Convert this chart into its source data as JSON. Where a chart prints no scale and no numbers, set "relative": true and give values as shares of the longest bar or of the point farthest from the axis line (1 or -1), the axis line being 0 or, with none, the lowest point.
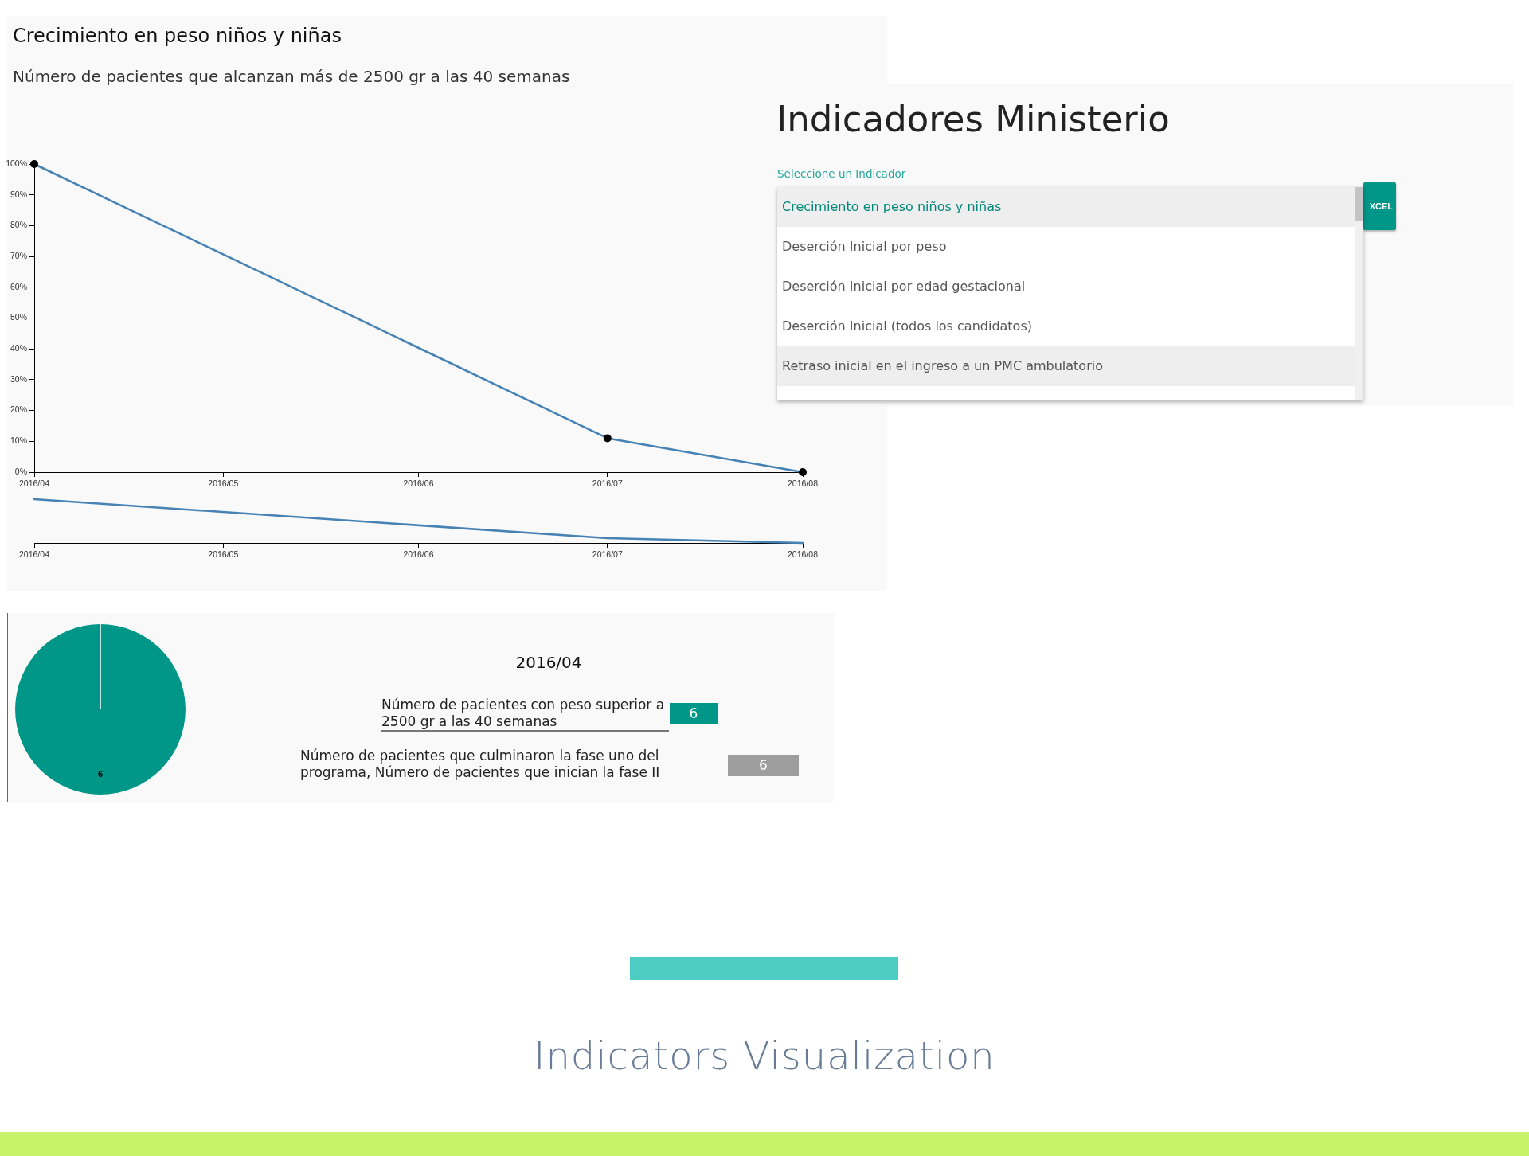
{
  "chart_data": [
    {
      "type": "line",
      "title": "Crecimiento en peso niños y niñas",
      "subtitle": "Número de pacientes que alcanzan más de 2500 gr a las 40 semanas",
      "x": [
        "2016-04",
        "2016-07",
        "2016-08"
      ],
      "values": [
        100,
        11,
        0
      ],
      "color": "#4682b4",
      "colors": [
        "#000000",
        "#000000",
        "#000000"
      ],
      "marker": "circle",
      "xlim": [
        "2016-04",
        "2016-08"
      ],
      "xticks": [
        {
          "value": "2016-04",
          "label": "2016/04"
        },
        {
          "value": "2016-05",
          "label": "2016/05"
        },
        {
          "value": "2016-06",
          "label": "2016/06"
        },
        {
          "value": "2016-07",
          "label": "2016/07"
        },
        {
          "value": "2016-08",
          "label": "2016/08"
        }
      ],
      "ylim": [
        0,
        100
      ],
      "yticks": [
        {
          "value": 0,
          "label": "0%"
        },
        {
          "value": 10,
          "label": "10%"
        },
        {
          "value": 20,
          "label": "20%"
        },
        {
          "value": 30,
          "label": "30%"
        },
        {
          "value": 40,
          "label": "40%"
        },
        {
          "value": 50,
          "label": "50%"
        },
        {
          "value": 60,
          "label": "60%"
        },
        {
          "value": 70,
          "label": "70%"
        },
        {
          "value": 80,
          "label": "80%"
        },
        {
          "value": 90,
          "label": "90%"
        },
        {
          "value": 100,
          "label": "100%"
        }
      ]
    },
    {
      "type": "other",
      "title": "Indicadores Ministerio",
      "subtitle": "Seleccione un Indicador",
      "categories": [
        "Crecimiento en peso niños y niñas",
        "Deserción Inicial por peso",
        "Deserción Inicial por edad gestacional",
        "Deserción Inicial (todos los candidatos)",
        "Retraso inicial en el ingreso a un PMC ambulatorio"
      ],
      "annotations": [
        "XCEL"
      ]
    },
    {
      "type": "line",
      "x": [
        "2016-04",
        "2016-07",
        "2016-08"
      ],
      "values": [
        1,
        0.11,
        0
      ],
      "color": "#4682b4",
      "relative": true,
      "xlim": [
        "2016-04",
        "2016-08"
      ],
      "xticks": [
        {
          "value": "2016-04",
          "label": "2016/04"
        },
        {
          "value": "2016-05",
          "label": "2016/05"
        },
        {
          "value": "2016-06",
          "label": "2016/06"
        },
        {
          "value": "2016-07",
          "label": "2016/07"
        },
        {
          "value": "2016-08",
          "label": "2016/08"
        }
      ],
      "tick_labels": "x"
    },
    {
      "type": "pie",
      "categories": [
        null
      ],
      "values": [
        6
      ],
      "colors": [
        "#009688"
      ],
      "data_labels": true
    },
    {
      "type": "other",
      "title": "2016/04",
      "categories": [
        "Número de pacientes con peso superior a 2500 gr a las 40 semanas",
        "Número de pacientes que culminaron la fase uno del programa, Número de pacientes que inician la fase II"
      ],
      "values": [
        6,
        6
      ],
      "data_labels": true
    },
    {
      "type": "other",
      "title": "Indicators Visualization"
    }
  ]
}
